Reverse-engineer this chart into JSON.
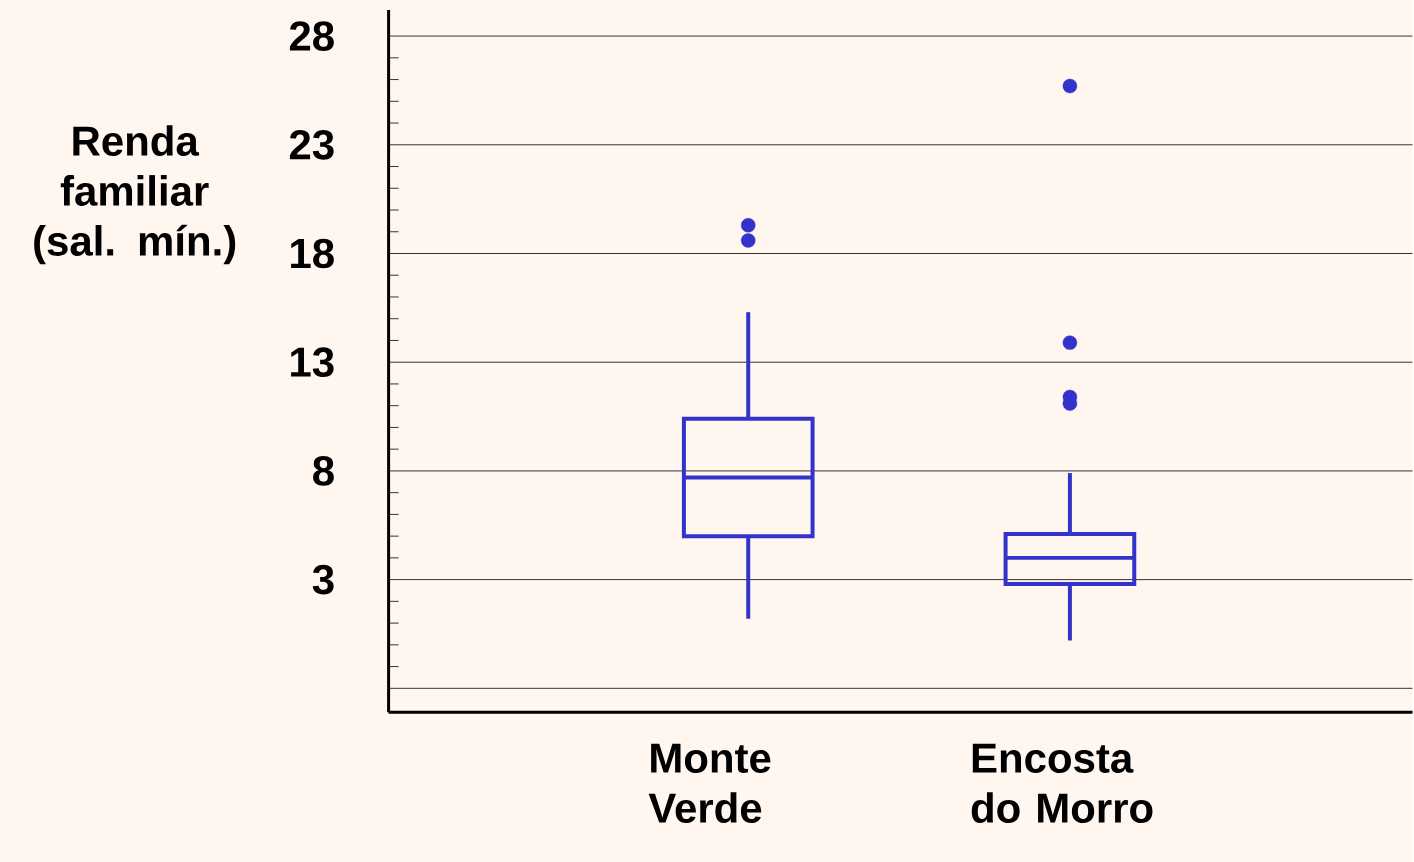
{
  "chart_data": {
    "type": "box",
    "ylabel": "Renda familiar (sal. mín.)",
    "categories": [
      "Monte Verde",
      "Encosta do Morro"
    ],
    "color": "#3333cc",
    "boxes": [
      {
        "low": 1.2,
        "q1": 5.0,
        "median": 7.7,
        "q3": 10.4,
        "high": 15.3,
        "outliers": [
          19.3,
          18.6
        ]
      },
      {
        "low": 0.2,
        "q1": 2.8,
        "median": 4.0,
        "q3": 5.1,
        "high": 7.9,
        "outliers": [
          25.7,
          13.9,
          11.4,
          11.1
        ]
      }
    ],
    "ylim": [
      -3.1,
      29.2
    ],
    "yticks": [
      {
        "value": -2,
        "label": null
      },
      3,
      8,
      13,
      18,
      23,
      28
    ],
    "grid": "y"
  }
}
